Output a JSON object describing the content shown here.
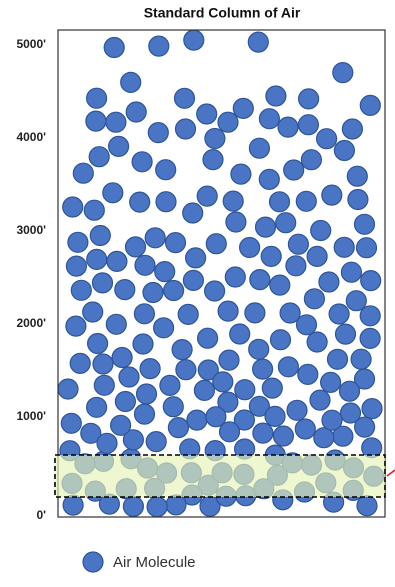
{
  "title": "Standard Column of Air",
  "y_axis": {
    "labels": [
      "5000'",
      "4000'",
      "3000'",
      "2000'",
      "1000'",
      "0'"
    ]
  },
  "legend": {
    "label": "Air Molecule"
  }
}
